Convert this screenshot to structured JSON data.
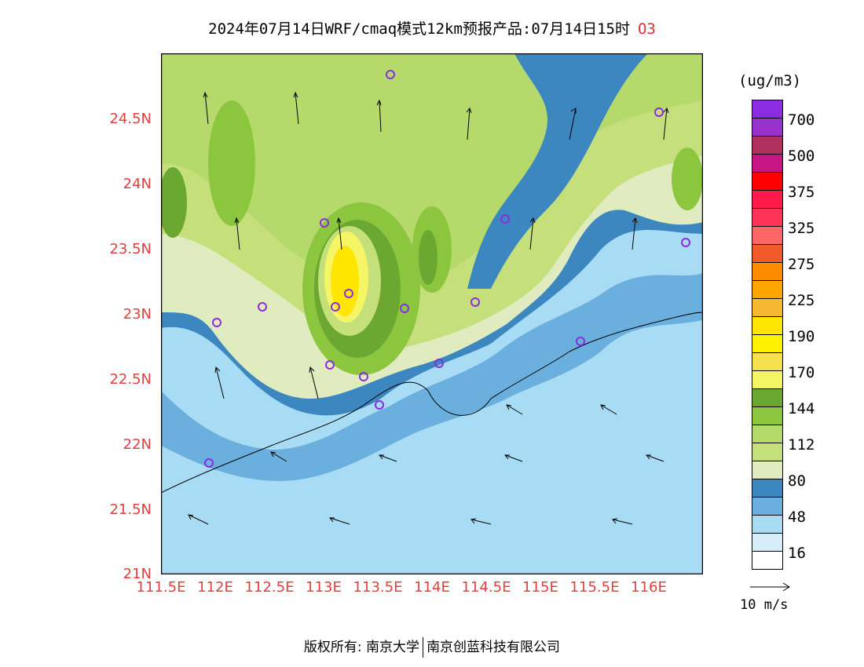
{
  "header": {
    "title": "2024年07月14日WRF/cmaq模式12km预报产品:07月14日15时",
    "species": "O3"
  },
  "axes": {
    "lat_labels": [
      "24.5N",
      "24N",
      "23.5N",
      "23N",
      "22.5N",
      "22N",
      "21.5N",
      "21N"
    ],
    "lon_labels": [
      "111.5E",
      "112E",
      "112.5E",
      "113E",
      "113.5E",
      "114E",
      "114.5E",
      "115E",
      "115.5E",
      "116E"
    ]
  },
  "legend": {
    "unit": "(ug/m3)",
    "colors": [
      "#8b2be2",
      "#9932cc",
      "#b03060",
      "#c71585",
      "#ff0000",
      "#ff1a4a",
      "#ff3355",
      "#ff6666",
      "#f05a28",
      "#ff8c00",
      "#ffa500",
      "#f5b830",
      "#ffe600",
      "#fff200",
      "#f5e050",
      "#f5f566",
      "#6aa832",
      "#8cc63f",
      "#b5d96a",
      "#c5e07a",
      "#e0ecc0",
      "#3d87c0",
      "#6aafde",
      "#a8dcf5",
      "#d5eefa",
      "#ffffff"
    ],
    "labels": [
      "700",
      "500",
      "375",
      "325",
      "275",
      "225",
      "190",
      "170",
      "144",
      "112",
      "80",
      "48",
      "16"
    ]
  },
  "reference_vector": {
    "label": "10 m/s"
  },
  "footer": {
    "left": "版权所有: 南京大学",
    "right": "南京创蓝科技有限公司"
  }
}
